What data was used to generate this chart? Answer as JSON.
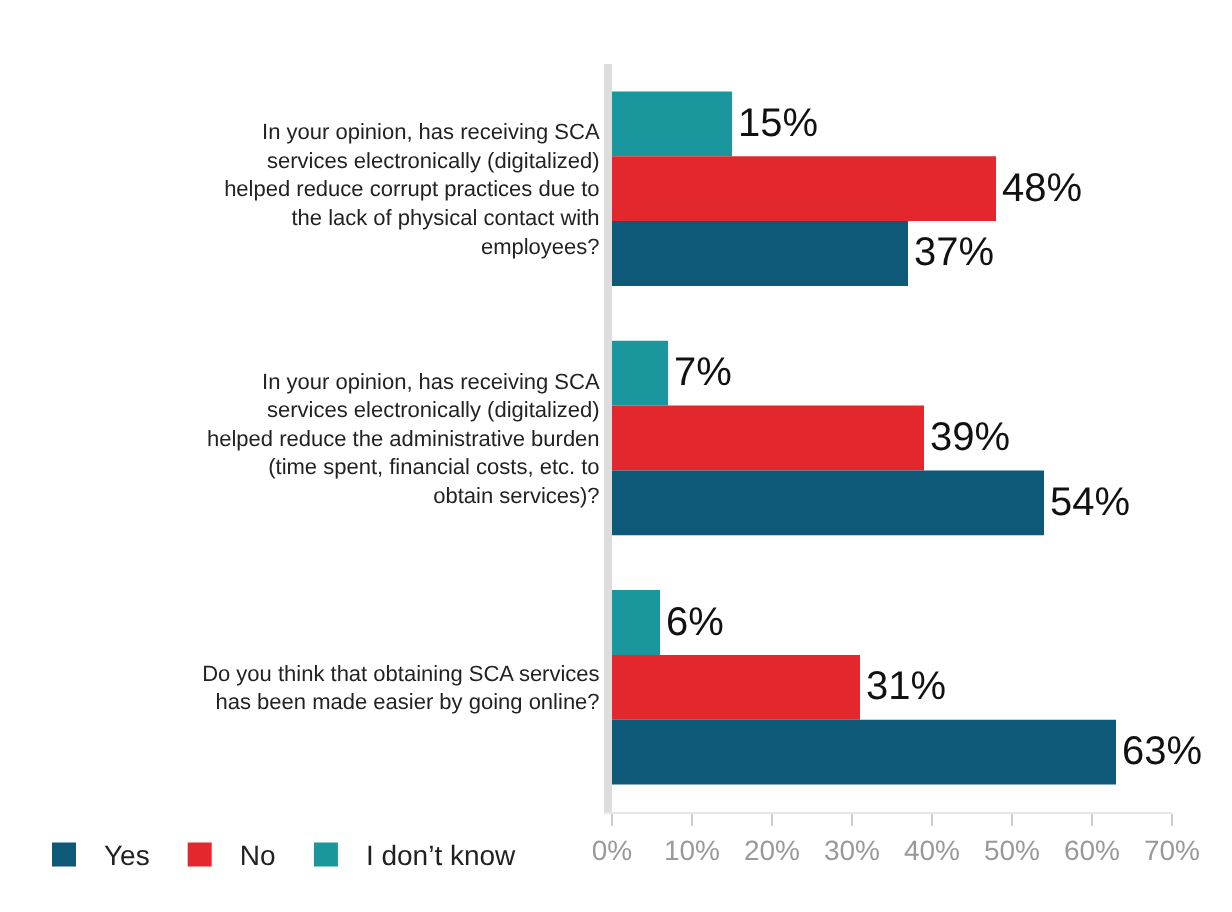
{
  "chart_data": {
    "type": "bar",
    "orientation": "horizontal",
    "categories": [
      "In your opinion, has receiving SCA services electronically (digitalized) helped reduce corrupt practices due to the lack of physical contact with employees?",
      "In your opinion, has receiving SCA services electronically (digitalized) helped reduce the administrative burden (time spent, financial costs, etc. to obtain services)?",
      "Do you think that obtaining SCA services has been made easier by going online?"
    ],
    "series": [
      {
        "name": "Yes",
        "color": "#0e5878",
        "values": [
          37,
          54,
          63
        ],
        "value_labels": [
          "37%",
          "54%",
          "63%"
        ]
      },
      {
        "name": "No",
        "color": "#e2282d",
        "values": [
          48,
          39,
          31
        ],
        "value_labels": [
          "48%",
          "39%",
          "31%"
        ]
      },
      {
        "name": "I don’t know",
        "color": "#19979c",
        "values": [
          15,
          7,
          6
        ],
        "value_labels": [
          "15%",
          "7%",
          "6%"
        ]
      }
    ],
    "xlim": [
      0,
      70
    ],
    "xticks": [
      {
        "value": 0,
        "label": "0%"
      },
      {
        "value": 10,
        "label": "10%"
      },
      {
        "value": 20,
        "label": "20%"
      },
      {
        "value": 30,
        "label": "30%"
      },
      {
        "value": 40,
        "label": "40%"
      },
      {
        "value": 50,
        "label": "50%"
      },
      {
        "value": 60,
        "label": "60%"
      },
      {
        "value": 70,
        "label": "70%"
      }
    ],
    "legend": "bottom left"
  }
}
